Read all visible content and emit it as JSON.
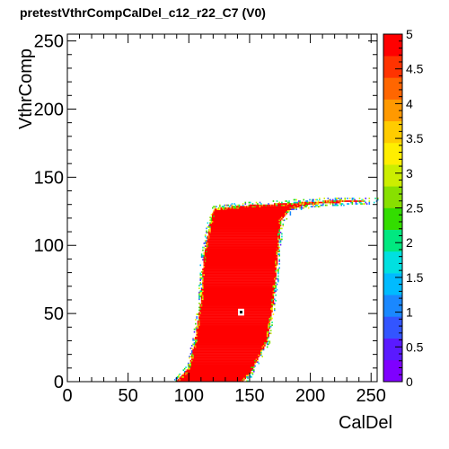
{
  "title": "pretestVthrCompCalDel_c12_r22_C7 (V0)",
  "chart_data": {
    "type": "heatmap",
    "title": "pretestVthrCompCalDel_c12_r22_C7 (V0)",
    "xlabel": "CalDel",
    "ylabel": "VthrComp",
    "xlim": [
      0,
      255
    ],
    "ylim": [
      0,
      255
    ],
    "x_ticks": [
      0,
      50,
      100,
      150,
      200,
      250
    ],
    "y_ticks": [
      0,
      50,
      100,
      150,
      200,
      250
    ],
    "x_tick_labels": [
      "0",
      "50",
      "100",
      "150",
      "200",
      "250"
    ],
    "y_tick_labels": [
      "0",
      "50",
      "100",
      "150",
      "200",
      "250"
    ],
    "zlim": [
      0,
      5
    ],
    "colorbar_ticks": [
      0,
      0.5,
      1,
      1.5,
      2,
      2.5,
      3,
      3.5,
      4,
      4.5,
      5
    ],
    "colorbar_tick_labels": [
      "0",
      "0.5",
      "1",
      "1.5",
      "2",
      "2.5",
      "3",
      "3.5",
      "4",
      "4.5",
      "5"
    ],
    "palette": [
      "#7f00ff",
      "#5a1aff",
      "#3355ff",
      "#1a88ff",
      "#00bbff",
      "#00e0e0",
      "#00e880",
      "#33dd00",
      "#88e000",
      "#ccee00",
      "#ffee00",
      "#ffcc00",
      "#ff9900",
      "#ff6600",
      "#ff3300",
      "#ff0000"
    ],
    "region": {
      "description_values": "pixel-value region in data units",
      "value": 5,
      "left_edge": [
        [
          90,
          0
        ],
        [
          100,
          10
        ],
        [
          105,
          30
        ],
        [
          110,
          60
        ],
        [
          112,
          90
        ],
        [
          115,
          105
        ],
        [
          118,
          118
        ],
        [
          121,
          127
        ]
      ],
      "top_edge": [
        [
          121,
          127
        ],
        [
          140,
          129
        ],
        [
          160,
          130
        ],
        [
          180,
          131
        ],
        [
          200,
          132
        ],
        [
          220,
          133
        ],
        [
          240,
          133
        ],
        [
          255,
          133
        ]
      ],
      "right_edge": [
        [
          255,
          133
        ],
        [
          235,
          132
        ],
        [
          215,
          131
        ],
        [
          200,
          130
        ],
        [
          185,
          127
        ],
        [
          176,
          118
        ],
        [
          174,
          100
        ],
        [
          170,
          60
        ],
        [
          165,
          30
        ],
        [
          150,
          5
        ],
        [
          145,
          0
        ]
      ],
      "edge_noise_value": [
        2,
        4.5
      ]
    },
    "hole": {
      "x": 143,
      "y": 51,
      "size": 5,
      "center_value": 5
    }
  }
}
